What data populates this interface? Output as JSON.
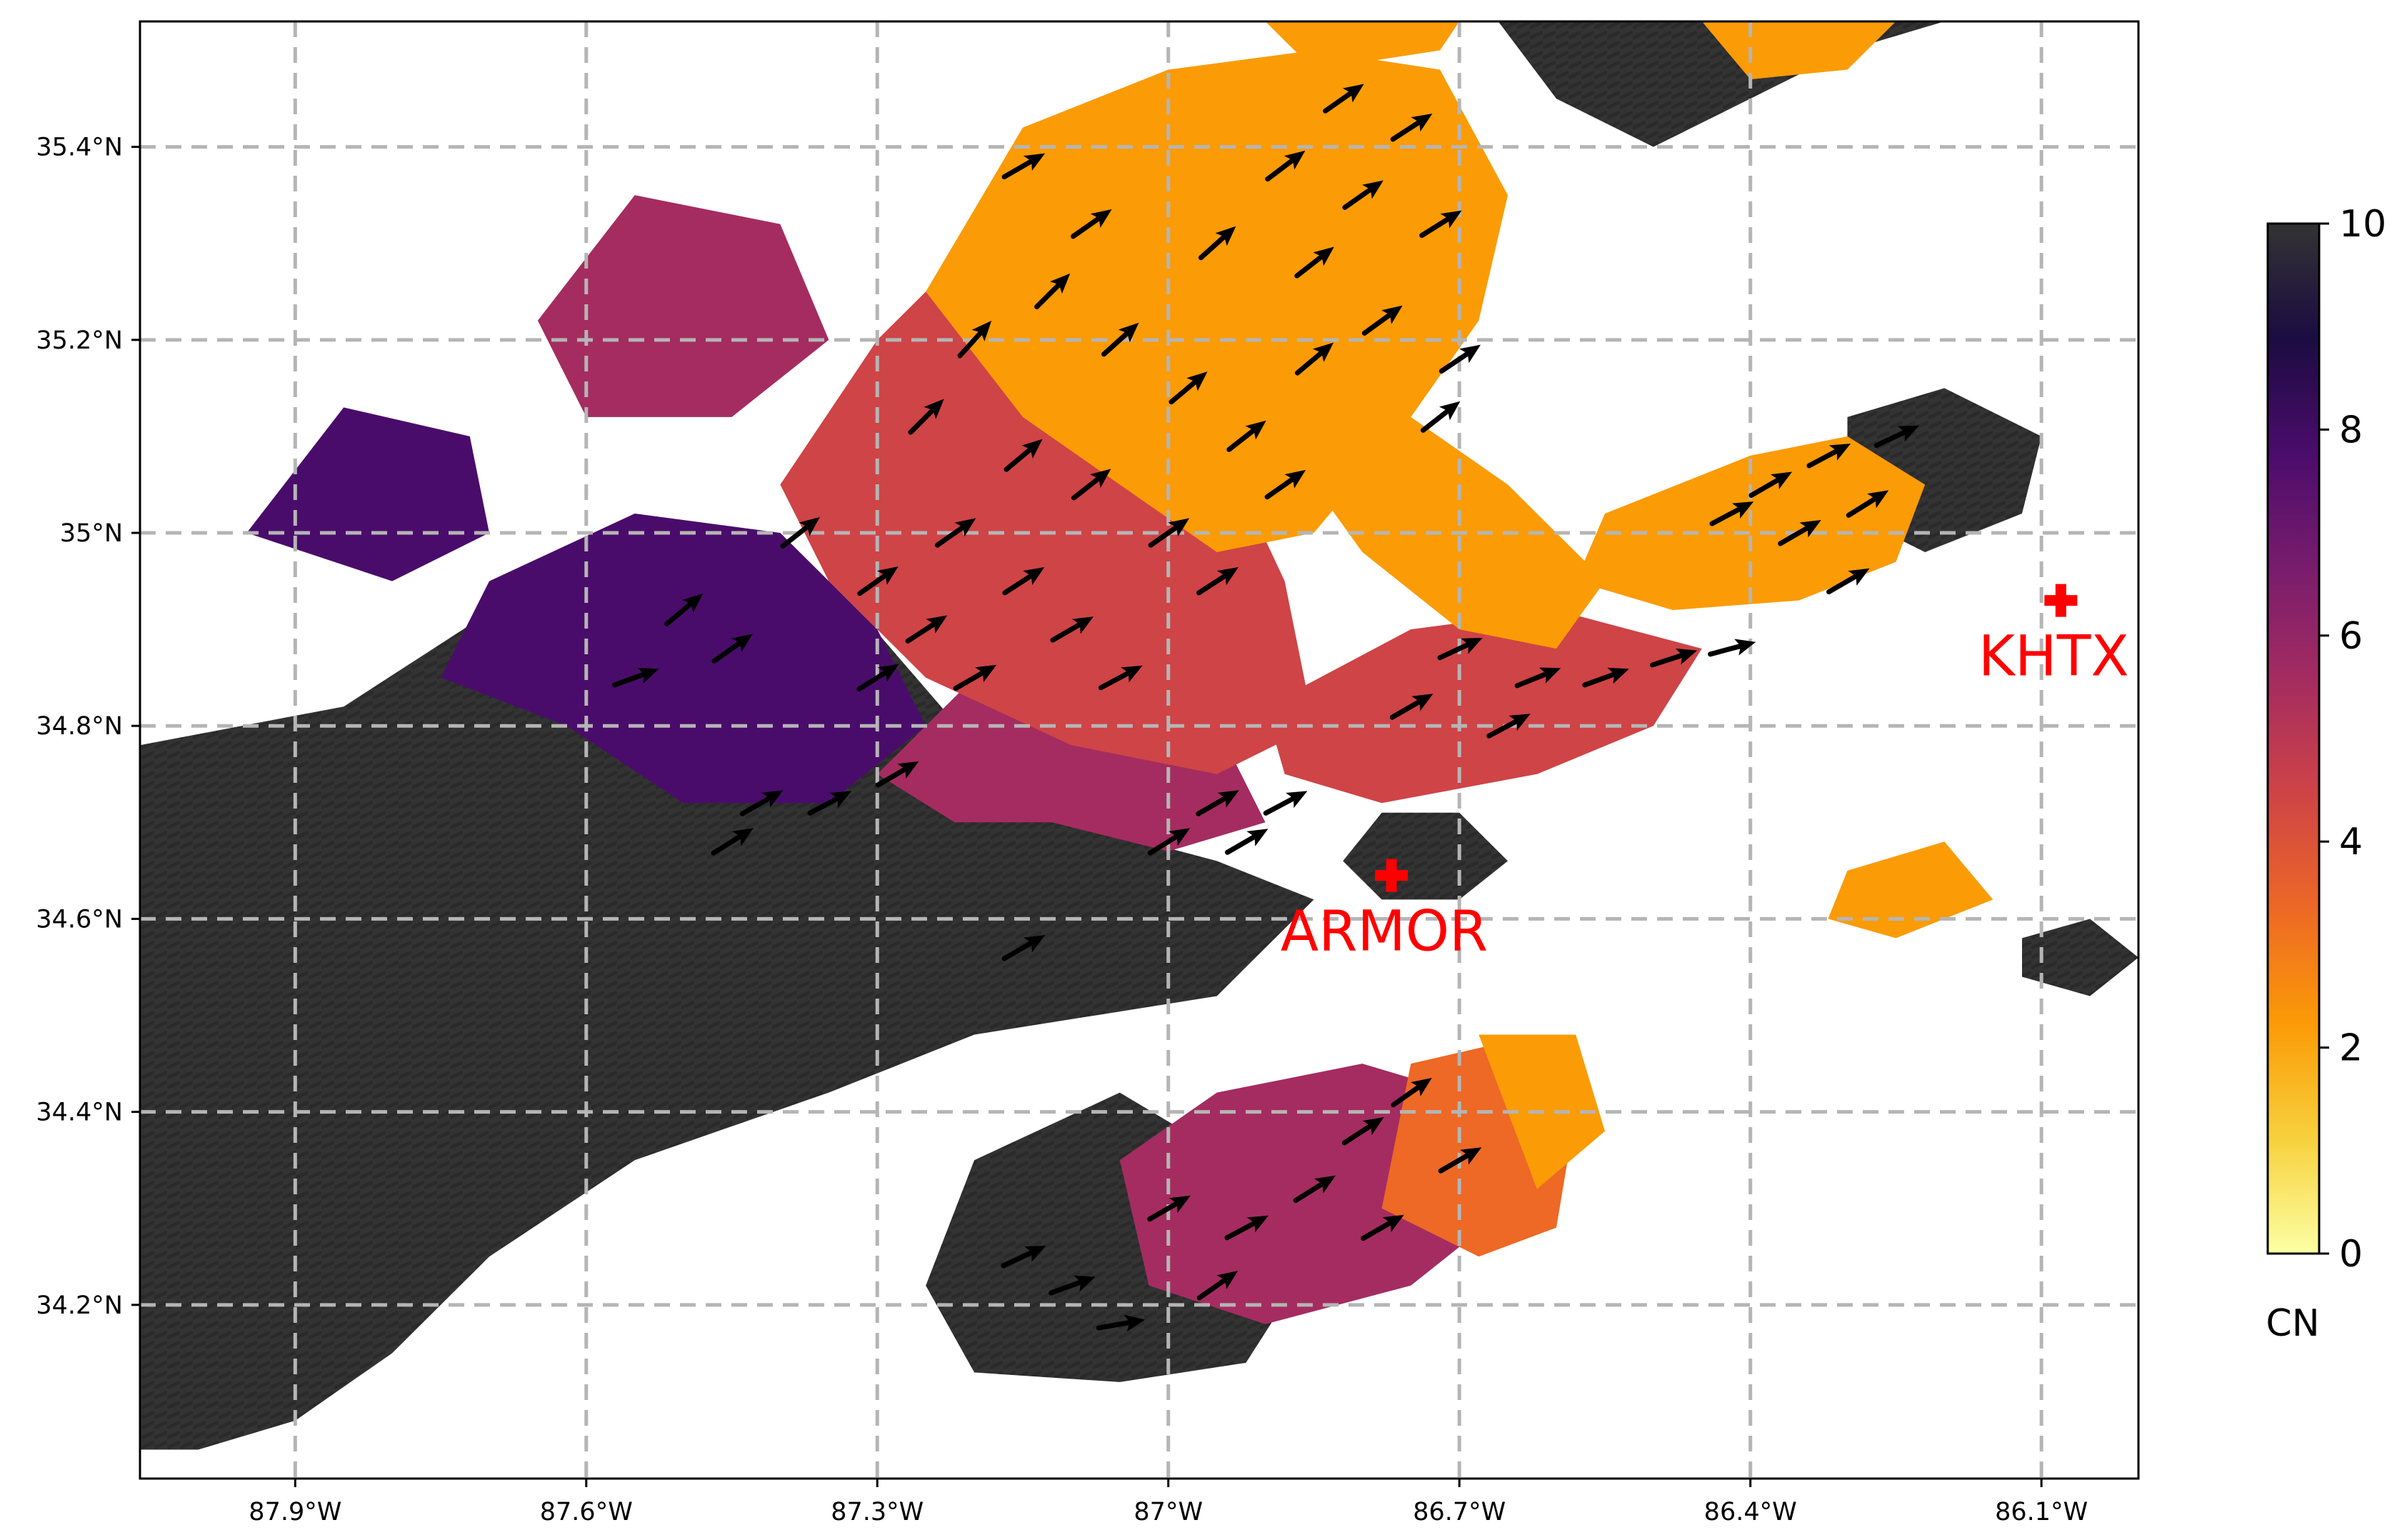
{
  "chart_data": {
    "type": "heatmap",
    "title": "",
    "xlabel": "",
    "ylabel": "",
    "xlim": [
      -88.06,
      -86.0
    ],
    "ylim": [
      34.02,
      35.53
    ],
    "grid": true,
    "x_ticks": [
      {
        "value": -87.9,
        "label": "87.9°W"
      },
      {
        "value": -87.6,
        "label": "87.6°W"
      },
      {
        "value": -87.3,
        "label": "87.3°W"
      },
      {
        "value": -87.0,
        "label": "87°W"
      },
      {
        "value": -86.7,
        "label": "86.7°W"
      },
      {
        "value": -86.4,
        "label": "86.4°W"
      },
      {
        "value": -86.1,
        "label": "86.1°W"
      }
    ],
    "y_ticks": [
      {
        "value": 34.2,
        "label": "34.2°N"
      },
      {
        "value": 34.4,
        "label": "34.4°N"
      },
      {
        "value": 34.6,
        "label": "34.6°N"
      },
      {
        "value": 34.8,
        "label": "34.8°N"
      },
      {
        "value": 35.0,
        "label": "35°N"
      },
      {
        "value": 35.2,
        "label": "35.2°N"
      },
      {
        "value": 35.4,
        "label": "35.4°N"
      }
    ],
    "colorbar": {
      "label": "CN",
      "range": [
        0,
        10
      ],
      "colormap": "inferno_r",
      "ticks": [
        {
          "value": 0,
          "label": "0"
        },
        {
          "value": 2,
          "label": "2"
        },
        {
          "value": 4,
          "label": "4"
        },
        {
          "value": 6,
          "label": "6"
        },
        {
          "value": 8,
          "label": "8"
        },
        {
          "value": 10,
          "label": "10"
        }
      ],
      "stops": [
        "#fcffa4",
        "#f7d13d",
        "#fb9b06",
        "#ed6925",
        "#cf4446",
        "#a52c60",
        "#781c6d",
        "#4a0c6b",
        "#1b0c41",
        "#333333"
      ]
    },
    "stations": [
      {
        "name": "ARMOR",
        "lon": -86.77,
        "lat": 34.645,
        "marker": "plus",
        "color": "#ff0000"
      },
      {
        "name": "KHTX",
        "lon": -86.08,
        "lat": 34.93,
        "marker": "plus",
        "color": "#ff0000"
      }
    ],
    "regions": [
      {
        "level": 10,
        "polygon": [
          [
            -88.06,
            34.05
          ],
          [
            -88.06,
            34.78
          ],
          [
            -87.85,
            34.82
          ],
          [
            -87.65,
            34.95
          ],
          [
            -87.45,
            34.98
          ],
          [
            -87.32,
            34.92
          ],
          [
            -87.2,
            34.78
          ],
          [
            -87.1,
            34.7
          ],
          [
            -86.95,
            34.66
          ],
          [
            -86.85,
            34.62
          ],
          [
            -86.95,
            34.52
          ],
          [
            -87.2,
            34.48
          ],
          [
            -87.35,
            34.42
          ],
          [
            -87.55,
            34.35
          ],
          [
            -87.7,
            34.25
          ],
          [
            -87.8,
            34.15
          ],
          [
            -87.9,
            34.08
          ],
          [
            -88.0,
            34.05
          ]
        ]
      },
      {
        "level": 10,
        "polygon": [
          [
            -87.25,
            34.22
          ],
          [
            -87.2,
            34.35
          ],
          [
            -87.05,
            34.42
          ],
          [
            -86.95,
            34.36
          ],
          [
            -86.85,
            34.25
          ],
          [
            -86.92,
            34.14
          ],
          [
            -87.05,
            34.12
          ],
          [
            -87.2,
            34.13
          ]
        ]
      },
      {
        "level": 10,
        "polygon": [
          [
            -86.82,
            34.66
          ],
          [
            -86.78,
            34.71
          ],
          [
            -86.7,
            34.71
          ],
          [
            -86.65,
            34.66
          ],
          [
            -86.7,
            34.62
          ],
          [
            -86.78,
            34.62
          ]
        ]
      },
      {
        "level": 10,
        "polygon": [
          [
            -86.66,
            35.53
          ],
          [
            -86.6,
            35.45
          ],
          [
            -86.5,
            35.4
          ],
          [
            -86.4,
            35.45
          ],
          [
            -86.3,
            35.5
          ],
          [
            -86.2,
            35.53
          ]
        ]
      },
      {
        "level": 10,
        "polygon": [
          [
            -86.3,
            35.12
          ],
          [
            -86.2,
            35.15
          ],
          [
            -86.1,
            35.1
          ],
          [
            -86.12,
            35.02
          ],
          [
            -86.22,
            34.98
          ],
          [
            -86.3,
            35.02
          ]
        ]
      },
      {
        "level": 10,
        "polygon": [
          [
            -86.12,
            34.58
          ],
          [
            -86.05,
            34.6
          ],
          [
            -86.0,
            34.56
          ],
          [
            -86.05,
            34.52
          ],
          [
            -86.12,
            34.54
          ]
        ]
      },
      {
        "level": 8,
        "polygon": [
          [
            -87.7,
            34.95
          ],
          [
            -87.55,
            35.02
          ],
          [
            -87.4,
            35.0
          ],
          [
            -87.3,
            34.9
          ],
          [
            -87.25,
            34.8
          ],
          [
            -87.35,
            34.72
          ],
          [
            -87.5,
            34.72
          ],
          [
            -87.62,
            34.8
          ],
          [
            -87.75,
            34.85
          ]
        ]
      },
      {
        "level": 8,
        "polygon": [
          [
            -87.95,
            35.0
          ],
          [
            -87.85,
            35.13
          ],
          [
            -87.72,
            35.1
          ],
          [
            -87.7,
            35.0
          ],
          [
            -87.8,
            34.95
          ]
        ]
      },
      {
        "level": 6,
        "polygon": [
          [
            -87.65,
            35.22
          ],
          [
            -87.55,
            35.35
          ],
          [
            -87.4,
            35.32
          ],
          [
            -87.35,
            35.2
          ],
          [
            -87.45,
            35.12
          ],
          [
            -87.6,
            35.12
          ]
        ]
      },
      {
        "level": 6,
        "polygon": [
          [
            -87.3,
            34.75
          ],
          [
            -87.2,
            34.85
          ],
          [
            -87.05,
            34.85
          ],
          [
            -86.95,
            34.8
          ],
          [
            -86.9,
            34.7
          ],
          [
            -87.0,
            34.67
          ],
          [
            -87.12,
            34.7
          ],
          [
            -87.22,
            34.7
          ]
        ]
      },
      {
        "level": 6,
        "polygon": [
          [
            -87.05,
            34.35
          ],
          [
            -86.95,
            34.42
          ],
          [
            -86.8,
            34.45
          ],
          [
            -86.7,
            34.42
          ],
          [
            -86.65,
            34.3
          ],
          [
            -86.75,
            34.22
          ],
          [
            -86.9,
            34.18
          ],
          [
            -87.02,
            34.22
          ]
        ]
      },
      {
        "level": 4,
        "polygon": [
          [
            -87.4,
            35.05
          ],
          [
            -87.3,
            35.2
          ],
          [
            -87.2,
            35.3
          ],
          [
            -87.05,
            35.28
          ],
          [
            -86.95,
            35.1
          ],
          [
            -86.88,
            34.95
          ],
          [
            -86.85,
            34.8
          ],
          [
            -86.95,
            34.75
          ],
          [
            -87.1,
            34.78
          ],
          [
            -87.25,
            34.85
          ],
          [
            -87.35,
            34.95
          ]
        ]
      },
      {
        "level": 4,
        "polygon": [
          [
            -86.9,
            34.82
          ],
          [
            -86.75,
            34.9
          ],
          [
            -86.6,
            34.92
          ],
          [
            -86.45,
            34.88
          ],
          [
            -86.5,
            34.8
          ],
          [
            -86.62,
            34.75
          ],
          [
            -86.78,
            34.72
          ],
          [
            -86.88,
            34.75
          ]
        ]
      },
      {
        "level": 3,
        "polygon": [
          [
            -86.75,
            34.45
          ],
          [
            -86.62,
            34.48
          ],
          [
            -86.58,
            34.4
          ],
          [
            -86.6,
            34.28
          ],
          [
            -86.68,
            34.25
          ],
          [
            -86.78,
            34.3
          ]
        ]
      },
      {
        "level": 2,
        "polygon": [
          [
            -87.25,
            35.25
          ],
          [
            -87.15,
            35.42
          ],
          [
            -87.0,
            35.48
          ],
          [
            -86.85,
            35.5
          ],
          [
            -86.72,
            35.48
          ],
          [
            -86.65,
            35.35
          ],
          [
            -86.68,
            35.22
          ],
          [
            -86.75,
            35.12
          ],
          [
            -86.85,
            35.0
          ],
          [
            -86.95,
            34.98
          ],
          [
            -87.05,
            35.05
          ],
          [
            -87.15,
            35.12
          ]
        ]
      },
      {
        "level": 2,
        "polygon": [
          [
            -86.95,
            35.05
          ],
          [
            -86.85,
            35.05
          ],
          [
            -86.8,
            34.98
          ],
          [
            -86.7,
            34.9
          ],
          [
            -86.6,
            34.88
          ],
          [
            -86.55,
            34.95
          ],
          [
            -86.65,
            35.05
          ],
          [
            -86.75,
            35.12
          ]
        ]
      },
      {
        "level": 2,
        "polygon": [
          [
            -86.55,
            35.02
          ],
          [
            -86.4,
            35.08
          ],
          [
            -86.3,
            35.1
          ],
          [
            -86.22,
            35.05
          ],
          [
            -86.25,
            34.97
          ],
          [
            -86.35,
            34.93
          ],
          [
            -86.48,
            34.92
          ],
          [
            -86.58,
            34.95
          ]
        ]
      },
      {
        "level": 2,
        "polygon": [
          [
            -86.9,
            35.53
          ],
          [
            -86.85,
            35.48
          ],
          [
            -86.72,
            35.5
          ],
          [
            -86.7,
            35.53
          ]
        ]
      },
      {
        "level": 2,
        "polygon": [
          [
            -86.45,
            35.53
          ],
          [
            -86.4,
            35.47
          ],
          [
            -86.3,
            35.48
          ],
          [
            -86.25,
            35.53
          ]
        ]
      },
      {
        "level": 2,
        "polygon": [
          [
            -86.3,
            34.65
          ],
          [
            -86.2,
            34.68
          ],
          [
            -86.15,
            34.62
          ],
          [
            -86.25,
            34.58
          ],
          [
            -86.32,
            34.6
          ]
        ]
      },
      {
        "level": 2,
        "polygon": [
          [
            -86.68,
            34.48
          ],
          [
            -86.58,
            34.48
          ],
          [
            -86.55,
            34.38
          ],
          [
            -86.62,
            34.32
          ]
        ]
      }
    ],
    "vectors": [
      {
        "lon": -87.5,
        "lat": 34.92,
        "angle": 40
      },
      {
        "lon": -87.45,
        "lat": 34.88,
        "angle": 35
      },
      {
        "lon": -87.55,
        "lat": 34.85,
        "angle": 20
      },
      {
        "lon": -87.42,
        "lat": 34.72,
        "angle": 30
      },
      {
        "lon": -87.35,
        "lat": 34.72,
        "angle": 28
      },
      {
        "lon": -87.45,
        "lat": 34.68,
        "angle": 32
      },
      {
        "lon": -87.28,
        "lat": 34.75,
        "angle": 30
      },
      {
        "lon": -87.38,
        "lat": 35.0,
        "angle": 38
      },
      {
        "lon": -87.3,
        "lat": 34.95,
        "angle": 35
      },
      {
        "lon": -87.25,
        "lat": 34.9,
        "angle": 33
      },
      {
        "lon": -87.2,
        "lat": 34.85,
        "angle": 30
      },
      {
        "lon": -87.3,
        "lat": 34.85,
        "angle": 32
      },
      {
        "lon": -87.22,
        "lat": 35.0,
        "angle": 35
      },
      {
        "lon": -87.15,
        "lat": 34.95,
        "angle": 33
      },
      {
        "lon": -87.1,
        "lat": 34.9,
        "angle": 30
      },
      {
        "lon": -87.05,
        "lat": 34.85,
        "angle": 28
      },
      {
        "lon": -87.15,
        "lat": 35.08,
        "angle": 40
      },
      {
        "lon": -87.08,
        "lat": 35.05,
        "angle": 38
      },
      {
        "lon": -87.0,
        "lat": 35.0,
        "angle": 35
      },
      {
        "lon": -86.95,
        "lat": 34.95,
        "angle": 33
      },
      {
        "lon": -87.25,
        "lat": 35.12,
        "angle": 45
      },
      {
        "lon": -87.2,
        "lat": 35.2,
        "angle": 48
      },
      {
        "lon": -87.12,
        "lat": 35.25,
        "angle": 45
      },
      {
        "lon": -87.05,
        "lat": 35.2,
        "angle": 42
      },
      {
        "lon": -87.15,
        "lat": 35.38,
        "angle": 30
      },
      {
        "lon": -87.08,
        "lat": 35.32,
        "angle": 35
      },
      {
        "lon": -86.98,
        "lat": 35.15,
        "angle": 40
      },
      {
        "lon": -86.92,
        "lat": 35.1,
        "angle": 38
      },
      {
        "lon": -86.82,
        "lat": 35.45,
        "angle": 35
      },
      {
        "lon": -86.75,
        "lat": 35.42,
        "angle": 33
      },
      {
        "lon": -86.88,
        "lat": 35.38,
        "angle": 37
      },
      {
        "lon": -86.8,
        "lat": 35.35,
        "angle": 35
      },
      {
        "lon": -86.72,
        "lat": 35.32,
        "angle": 32
      },
      {
        "lon": -86.85,
        "lat": 35.28,
        "angle": 38
      },
      {
        "lon": -86.78,
        "lat": 35.22,
        "angle": 36
      },
      {
        "lon": -86.7,
        "lat": 35.18,
        "angle": 34
      },
      {
        "lon": -86.85,
        "lat": 35.18,
        "angle": 40
      },
      {
        "lon": -86.95,
        "lat": 35.3,
        "angle": 42
      },
      {
        "lon": -86.88,
        "lat": 35.05,
        "angle": 35
      },
      {
        "lon": -86.72,
        "lat": 35.12,
        "angle": 38
      },
      {
        "lon": -86.7,
        "lat": 34.88,
        "angle": 25
      },
      {
        "lon": -86.62,
        "lat": 34.85,
        "angle": 22
      },
      {
        "lon": -86.55,
        "lat": 34.85,
        "angle": 20
      },
      {
        "lon": -86.48,
        "lat": 34.87,
        "angle": 18
      },
      {
        "lon": -86.42,
        "lat": 34.88,
        "angle": 15
      },
      {
        "lon": -86.75,
        "lat": 34.82,
        "angle": 30
      },
      {
        "lon": -86.65,
        "lat": 34.8,
        "angle": 28
      },
      {
        "lon": -86.95,
        "lat": 34.72,
        "angle": 30
      },
      {
        "lon": -86.88,
        "lat": 34.72,
        "angle": 28
      },
      {
        "lon": -87.0,
        "lat": 34.68,
        "angle": 32
      },
      {
        "lon": -86.92,
        "lat": 34.68,
        "angle": 30
      },
      {
        "lon": -87.15,
        "lat": 34.57,
        "angle": 30
      },
      {
        "lon": -86.38,
        "lat": 35.05,
        "angle": 30
      },
      {
        "lon": -86.32,
        "lat": 35.08,
        "angle": 28
      },
      {
        "lon": -86.28,
        "lat": 35.03,
        "angle": 32
      },
      {
        "lon": -86.35,
        "lat": 35.0,
        "angle": 30
      },
      {
        "lon": -86.42,
        "lat": 35.02,
        "angle": 28
      },
      {
        "lon": -86.25,
        "lat": 35.1,
        "angle": 25
      },
      {
        "lon": -86.3,
        "lat": 34.95,
        "angle": 30
      },
      {
        "lon": -86.75,
        "lat": 34.42,
        "angle": 35
      },
      {
        "lon": -86.8,
        "lat": 34.38,
        "angle": 33
      },
      {
        "lon": -86.7,
        "lat": 34.35,
        "angle": 30
      },
      {
        "lon": -86.85,
        "lat": 34.32,
        "angle": 32
      },
      {
        "lon": -86.78,
        "lat": 34.28,
        "angle": 30
      },
      {
        "lon": -86.92,
        "lat": 34.28,
        "angle": 28
      },
      {
        "lon": -87.0,
        "lat": 34.3,
        "angle": 30
      },
      {
        "lon": -86.95,
        "lat": 34.22,
        "angle": 35
      },
      {
        "lon": -87.1,
        "lat": 34.22,
        "angle": 20
      },
      {
        "lon": -87.15,
        "lat": 34.25,
        "angle": 25
      },
      {
        "lon": -87.05,
        "lat": 34.18,
        "angle": 10
      }
    ]
  }
}
